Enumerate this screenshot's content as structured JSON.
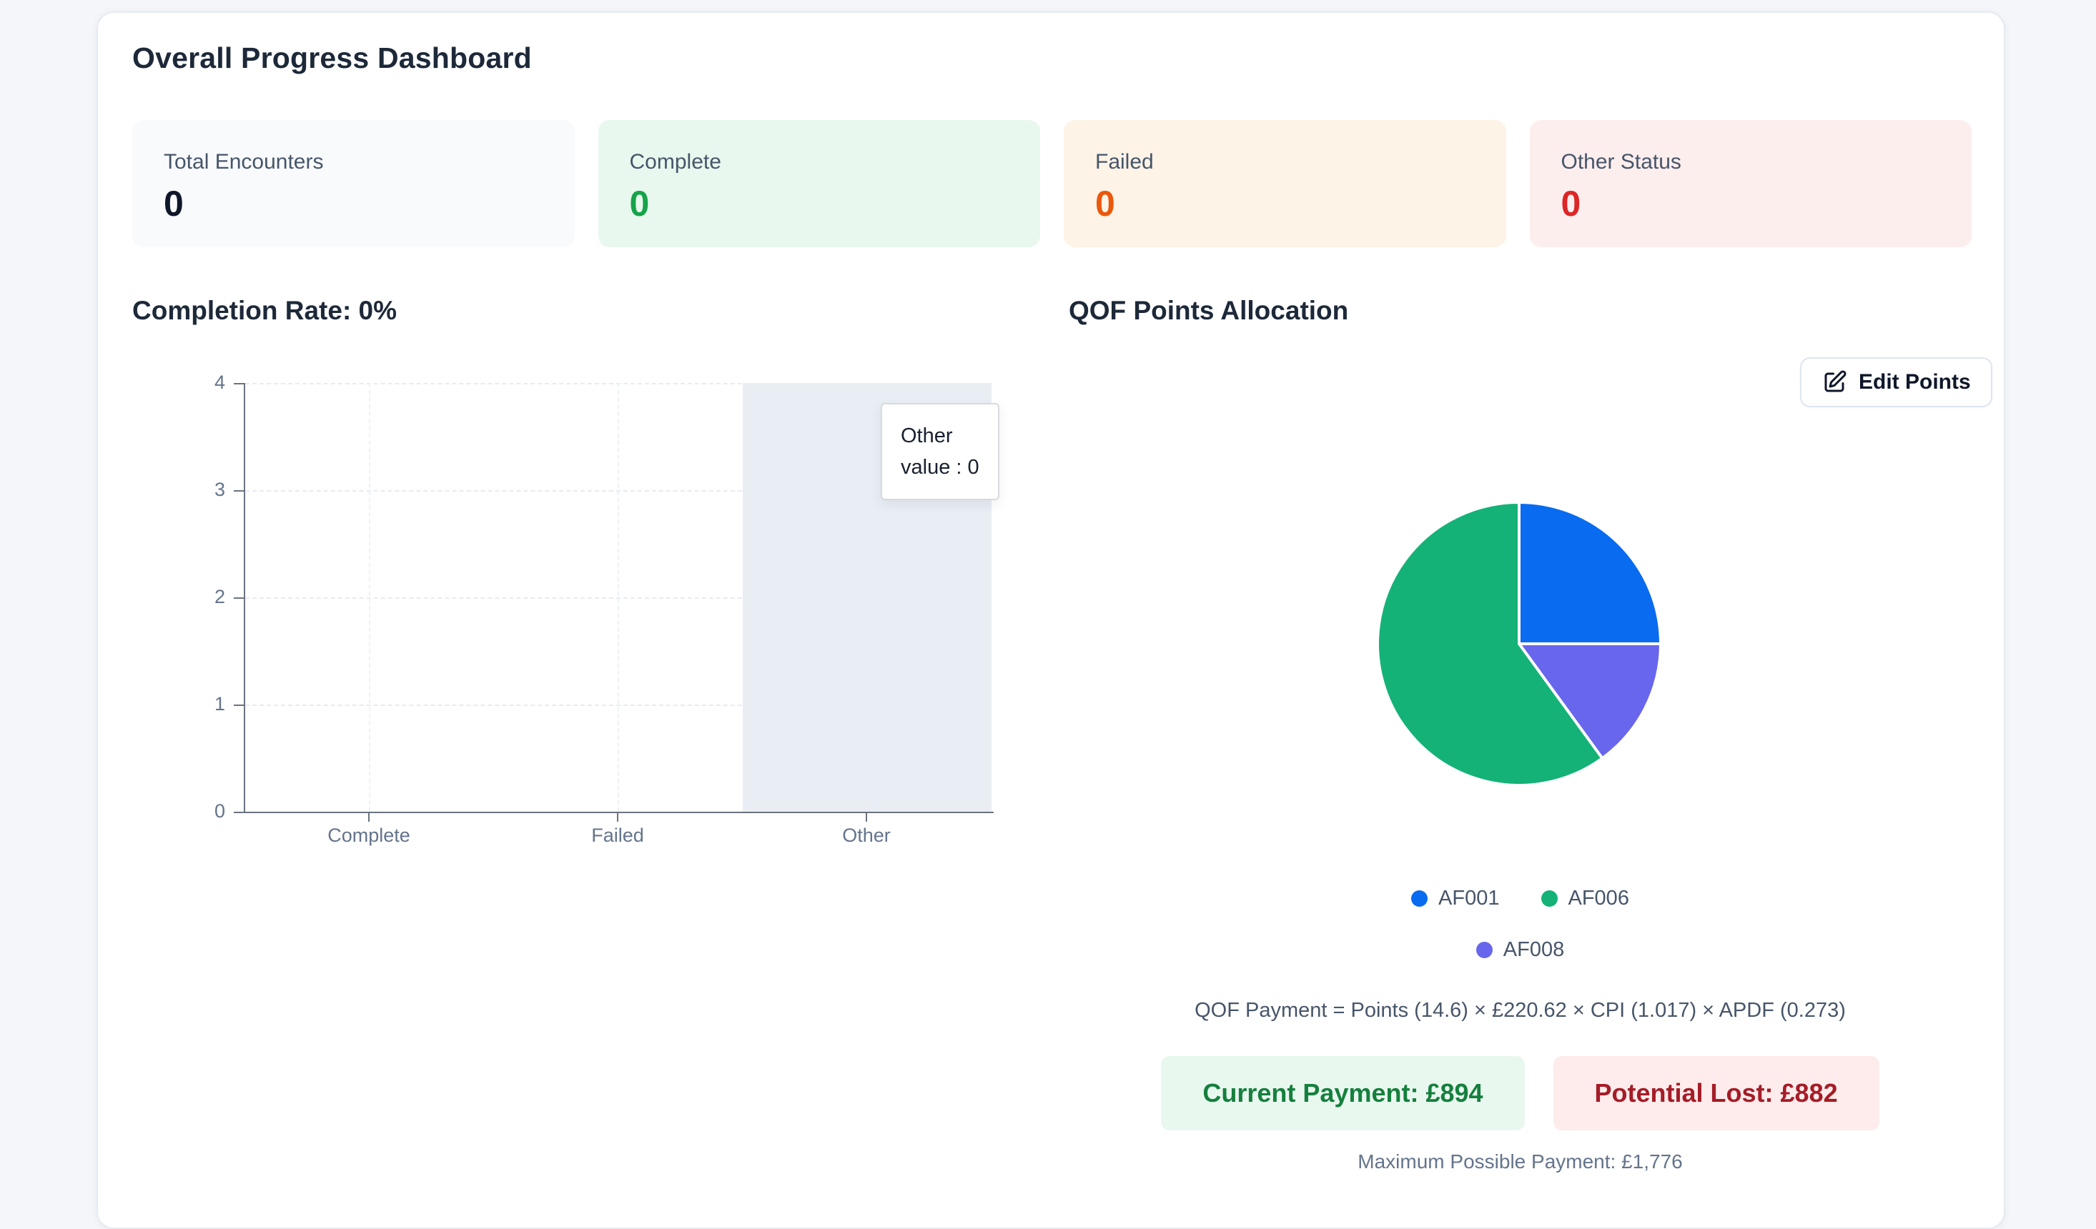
{
  "page": {
    "title": "Overall Progress Dashboard",
    "background_color": "#f4f6fa"
  },
  "stats": [
    {
      "label": "Total Encounters",
      "value": 0,
      "bg": "#f8fafc",
      "value_color": "#0f172a"
    },
    {
      "label": "Complete",
      "value": 0,
      "bg": "#e8f8ee",
      "value_color": "#16a34a"
    },
    {
      "label": "Failed",
      "value": 0,
      "bg": "#fdf3e6",
      "value_color": "#ea580c"
    },
    {
      "label": "Other Status",
      "value": 0,
      "bg": "#fdeeee",
      "value_color": "#dc2626"
    }
  ],
  "completion_section": {
    "title": "Completion Rate: 0%"
  },
  "qof_section": {
    "title": "QOF Points Allocation",
    "edit_button_label": "Edit Points",
    "legend": [
      "AF001",
      "AF006",
      "AF008"
    ],
    "formula": "QOF Payment = Points (14.6) × £220.62 × CPI (1.017) × APDF (0.273)",
    "current_payment": "Current Payment: £894",
    "potential_lost": "Potential Lost: £882",
    "max_payment": "Maximum Possible Payment: £1,776"
  },
  "chart_data": [
    {
      "type": "bar",
      "title": "Completion Rate: 0%",
      "categories": [
        "Complete",
        "Failed",
        "Other"
      ],
      "values": [
        0,
        0,
        0
      ],
      "ylim": [
        0,
        4
      ],
      "yticks": [
        0,
        1,
        2,
        3,
        4
      ],
      "grid": true,
      "hovered_category": "Other",
      "tooltip": {
        "line1": "Other",
        "line2": "value : 0",
        "value": 0
      }
    },
    {
      "type": "pie",
      "title": "QOF Points Allocation",
      "order": "clockwise-from-top",
      "slices": [
        {
          "label": "AF001",
          "pct": 25,
          "color": "#096bef"
        },
        {
          "label": "AF008",
          "pct": 15,
          "color": "#6866ec"
        },
        {
          "label": "AF006",
          "pct": 60,
          "color": "#14b277"
        }
      ],
      "legend_position": "bottom"
    }
  ]
}
